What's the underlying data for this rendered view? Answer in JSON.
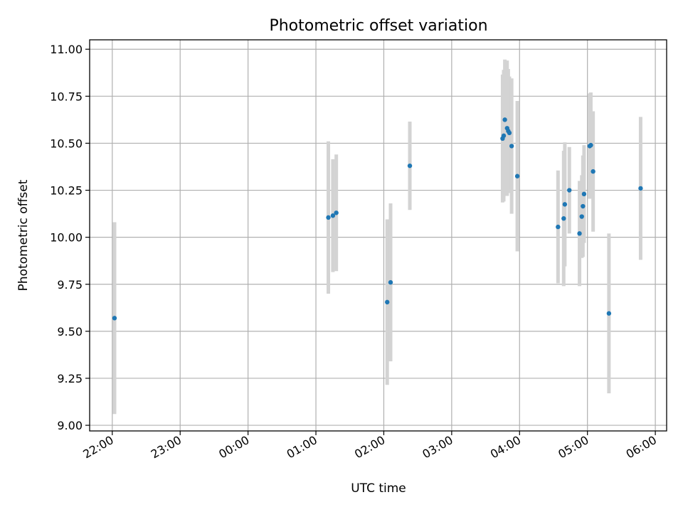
{
  "chart_data": {
    "type": "scatter",
    "title": "Photometric offset variation",
    "xlabel": "UTC time",
    "ylabel": "Photometric offset",
    "x_axis": {
      "kind": "time",
      "ticks": [
        "22:00",
        "23:00",
        "00:00",
        "01:00",
        "02:00",
        "03:00",
        "04:00",
        "05:00",
        "06:00"
      ],
      "range": [
        "21:40",
        "06:10"
      ]
    },
    "y_axis": {
      "ticks": [
        "9.00",
        "9.25",
        "9.50",
        "9.75",
        "10.00",
        "10.25",
        "10.50",
        "10.75",
        "11.00"
      ],
      "range": [
        8.97,
        11.05
      ]
    },
    "grid": true,
    "legend": "none",
    "colors": {
      "point": "#1f77b4",
      "error_bar": "#d3d3d3",
      "grid": "#b0b0b0"
    },
    "series": [
      {
        "points": [
          {
            "t": "22:02",
            "y": 9.57,
            "err": 0.51
          },
          {
            "t": "01:11",
            "y": 10.105,
            "err": 0.405
          },
          {
            "t": "01:15",
            "y": 10.115,
            "err": 0.3
          },
          {
            "t": "01:18",
            "y": 10.13,
            "err": 0.31
          },
          {
            "t": "02:03",
            "y": 9.655,
            "err": 0.44
          },
          {
            "t": "02:06",
            "y": 9.76,
            "err": 0.42
          },
          {
            "t": "02:23",
            "y": 10.38,
            "err": 0.235
          },
          {
            "t": "03:45",
            "y": 10.525,
            "err": 0.34
          },
          {
            "t": "03:46",
            "y": 10.54,
            "err": 0.35
          },
          {
            "t": "03:47",
            "y": 10.625,
            "err": 0.32
          },
          {
            "t": "03:49",
            "y": 10.58,
            "err": 0.36
          },
          {
            "t": "03:50",
            "y": 10.565,
            "err": 0.33
          },
          {
            "t": "03:51",
            "y": 10.555,
            "err": 0.3
          },
          {
            "t": "03:53",
            "y": 10.485,
            "err": 0.36
          },
          {
            "t": "03:58",
            "y": 10.325,
            "err": 0.4
          },
          {
            "t": "04:34",
            "y": 10.055,
            "err": 0.3
          },
          {
            "t": "04:39",
            "y": 10.1,
            "err": 0.36
          },
          {
            "t": "04:40",
            "y": 10.175,
            "err": 0.33
          },
          {
            "t": "04:44",
            "y": 10.25,
            "err": 0.23
          },
          {
            "t": "04:53",
            "y": 10.02,
            "err": 0.28
          },
          {
            "t": "04:55",
            "y": 10.11,
            "err": 0.22
          },
          {
            "t": "04:56",
            "y": 10.165,
            "err": 0.27
          },
          {
            "t": "04:57",
            "y": 10.23,
            "err": 0.26
          },
          {
            "t": "05:02",
            "y": 10.485,
            "err": 0.28
          },
          {
            "t": "05:03",
            "y": 10.49,
            "err": 0.28
          },
          {
            "t": "05:05",
            "y": 10.35,
            "err": 0.32
          },
          {
            "t": "05:19",
            "y": 9.595,
            "err": 0.425
          },
          {
            "t": "05:47",
            "y": 10.26,
            "err": 0.38
          }
        ]
      }
    ]
  }
}
